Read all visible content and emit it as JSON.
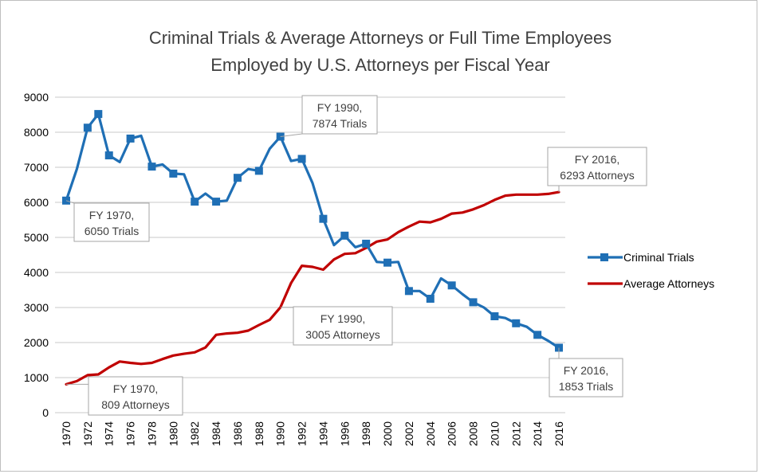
{
  "chart_data": {
    "type": "line",
    "title": "Criminal Trials & Average Attorneys or Full Time Employees",
    "subtitle": "Employed by U.S. Attorneys per Fiscal Year",
    "ylim": [
      0,
      9000
    ],
    "y_ticks": [
      "0",
      "1000",
      "2000",
      "3000",
      "4000",
      "5000",
      "6000",
      "7000",
      "8000",
      "9000"
    ],
    "x_tick_labels": [
      "1970",
      "1972",
      "1974",
      "1976",
      "1978",
      "1980",
      "1982",
      "1984",
      "1986",
      "1988",
      "1990",
      "1992",
      "1994",
      "1996",
      "1998",
      "2000",
      "2002",
      "2004",
      "2006",
      "2008",
      "2010",
      "2012",
      "2014",
      "2016"
    ],
    "grid": "horizontal",
    "legend_position": "right",
    "x": [
      1970,
      1971,
      1972,
      1973,
      1974,
      1975,
      1976,
      1977,
      1978,
      1979,
      1980,
      1981,
      1982,
      1983,
      1984,
      1985,
      1986,
      1987,
      1988,
      1989,
      1990,
      1991,
      1992,
      1993,
      1994,
      1995,
      1996,
      1997,
      1998,
      1999,
      2000,
      2001,
      2002,
      2003,
      2004,
      2005,
      2006,
      2007,
      2008,
      2009,
      2010,
      2011,
      2012,
      2013,
      2014,
      2015,
      2016
    ],
    "series": [
      {
        "name": "Criminal Trials",
        "color": "#1f6fb5",
        "marker": "square",
        "values": [
          6050,
          6950,
          8130,
          8520,
          7340,
          7150,
          7820,
          7900,
          7020,
          7080,
          6820,
          6800,
          6020,
          6250,
          6020,
          6050,
          6700,
          6950,
          6900,
          7530,
          7874,
          7180,
          7240,
          6550,
          5530,
          4780,
          5050,
          4720,
          4820,
          4300,
          4280,
          4300,
          3470,
          3470,
          3250,
          3830,
          3630,
          3380,
          3150,
          3000,
          2750,
          2700,
          2550,
          2450,
          2220,
          2050,
          1853
        ]
      },
      {
        "name": "Average Attorneys",
        "color": "#c00000",
        "marker": "none",
        "values": [
          809,
          900,
          1070,
          1090,
          1290,
          1460,
          1420,
          1390,
          1420,
          1530,
          1630,
          1680,
          1720,
          1860,
          2220,
          2260,
          2280,
          2340,
          2500,
          2650,
          3005,
          3700,
          4190,
          4160,
          4080,
          4370,
          4530,
          4550,
          4700,
          4880,
          4940,
          5150,
          5310,
          5450,
          5430,
          5530,
          5680,
          5710,
          5800,
          5920,
          6070,
          6190,
          6220,
          6220,
          6220,
          6240,
          6293
        ]
      }
    ],
    "annotations": [
      {
        "line1": "FY 1970,",
        "line2": "6050 Trials"
      },
      {
        "line1": "FY 1990,",
        "line2": "7874 Trials"
      },
      {
        "line1": "FY 2016,",
        "line2": "6293 Attorneys"
      },
      {
        "line1": "FY 1990,",
        "line2": "3005 Attorneys"
      },
      {
        "line1": "FY 1970,",
        "line2": "809 Attorneys"
      },
      {
        "line1": "FY 2016,",
        "line2": "1853 Trials"
      }
    ]
  }
}
